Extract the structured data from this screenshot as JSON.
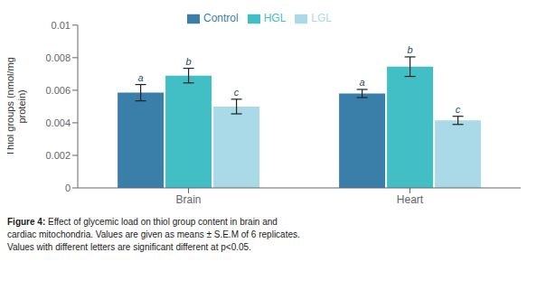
{
  "chart_data": {
    "type": "bar",
    "categories": [
      "Brain",
      "Heart"
    ],
    "series": [
      {
        "name": "Control",
        "color": "#3a7faa",
        "values": [
          0.00585,
          0.0058
        ],
        "errors": [
          0.0005,
          0.00025
        ],
        "letters": [
          "a",
          "a"
        ]
      },
      {
        "name": "HGL",
        "color": "#41bfc4",
        "values": [
          0.0069,
          0.00745
        ],
        "errors": [
          0.00045,
          0.0006
        ],
        "letters": [
          "b",
          "b"
        ]
      },
      {
        "name": "LGL",
        "color": "#aadae8",
        "values": [
          0.005,
          0.00415
        ],
        "errors": [
          0.00045,
          0.00025
        ],
        "letters": [
          "c",
          "c"
        ]
      }
    ],
    "ylabel": "Thiol groups (nmol/mg\nprotein)",
    "ylim": [
      0,
      0.01
    ],
    "yticks": [
      0,
      0.002,
      0.004,
      0.006,
      0.008,
      0.01
    ],
    "grid": false,
    "legend": "top",
    "caption_bold": "Figure 4:",
    "caption": [
      " Effect of glycemic load on thiol group content in brain and",
      "cardiac mitochondria. Values are given as means ± S.E.M of 6 replicates.",
      "Values with different letters are significant different at p<0.05."
    ]
  }
}
